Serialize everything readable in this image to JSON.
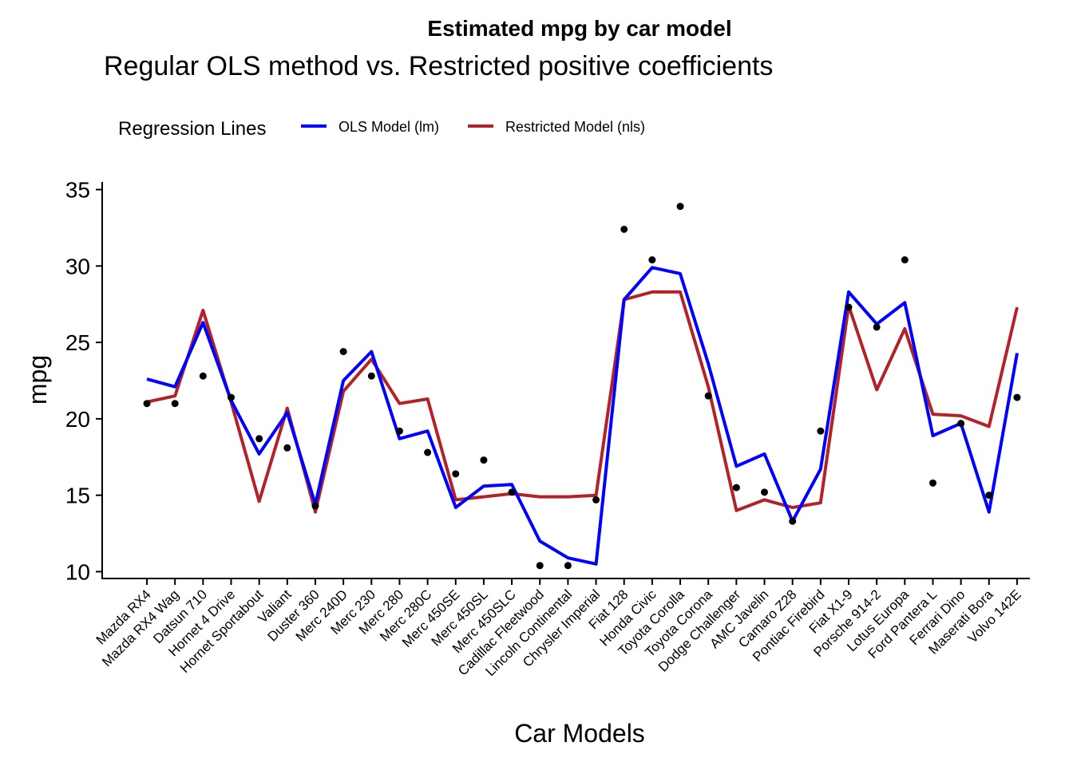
{
  "chart_data": {
    "type": "line",
    "title": "Estimated mpg by car model",
    "subtitle": "Regular OLS method vs. Restricted positive coefficients",
    "xlabel": "Car Models",
    "ylabel": "mpg",
    "ylim": [
      9.5,
      35.5
    ],
    "y_ticks": [
      10,
      15,
      20,
      25,
      30,
      35
    ],
    "grid": false,
    "legend": {
      "title": "Regression Lines",
      "placement": "top-left",
      "entries": [
        "OLS Model (lm)",
        "Restricted Model (nls)"
      ]
    },
    "colors": {
      "OLS Model (lm)": "#0000ff",
      "Restricted Model (nls)": "#b22228",
      "points": "#000000"
    },
    "categories": [
      "Mazda RX4",
      "Mazda RX4 Wag",
      "Datsun 710",
      "Hornet 4 Drive",
      "Hornet Sportabout",
      "Valiant",
      "Duster 360",
      "Merc 240D",
      "Merc 230",
      "Merc 280",
      "Merc 280C",
      "Merc 450SE",
      "Merc 450SL",
      "Merc 450SLC",
      "Cadillac Fleetwood",
      "Lincoln Continental",
      "Chrysler Imperial",
      "Fiat 128",
      "Honda Civic",
      "Toyota Corolla",
      "Toyota Corona",
      "Dodge Challenger",
      "AMC Javelin",
      "Camaro Z28",
      "Pontiac Firebird",
      "Fiat X1-9",
      "Porsche 914-2",
      "Lotus Europa",
      "Ford Pantera L",
      "Ferrari Dino",
      "Maserati Bora",
      "Volvo 142E"
    ],
    "observed": [
      21.0,
      21.0,
      22.8,
      21.4,
      18.7,
      18.1,
      14.3,
      24.4,
      22.8,
      19.2,
      17.8,
      16.4,
      17.3,
      15.2,
      10.4,
      10.4,
      14.7,
      32.4,
      30.4,
      33.9,
      21.5,
      15.5,
      15.2,
      13.3,
      19.2,
      27.3,
      26.0,
      30.4,
      15.8,
      19.7,
      15.0,
      21.4
    ],
    "series": [
      {
        "name": "OLS Model (lm)",
        "values": [
          22.6,
          22.1,
          26.3,
          21.2,
          17.7,
          20.4,
          14.4,
          22.5,
          24.4,
          18.7,
          19.2,
          14.2,
          15.6,
          15.7,
          12.0,
          10.9,
          10.5,
          27.8,
          29.9,
          29.5,
          23.6,
          16.9,
          17.7,
          13.3,
          16.7,
          28.3,
          26.2,
          27.6,
          18.9,
          19.7,
          13.9,
          24.3
        ]
      },
      {
        "name": "Restricted Model (nls)",
        "values": [
          21.1,
          21.5,
          27.1,
          21.1,
          14.6,
          20.7,
          13.9,
          21.8,
          23.9,
          21.0,
          21.3,
          14.7,
          14.9,
          15.1,
          14.9,
          14.9,
          15.0,
          27.8,
          28.3,
          28.3,
          22.1,
          14.0,
          14.7,
          14.2,
          14.5,
          27.4,
          21.9,
          25.9,
          20.3,
          20.2,
          19.5,
          27.3
        ]
      }
    ]
  }
}
